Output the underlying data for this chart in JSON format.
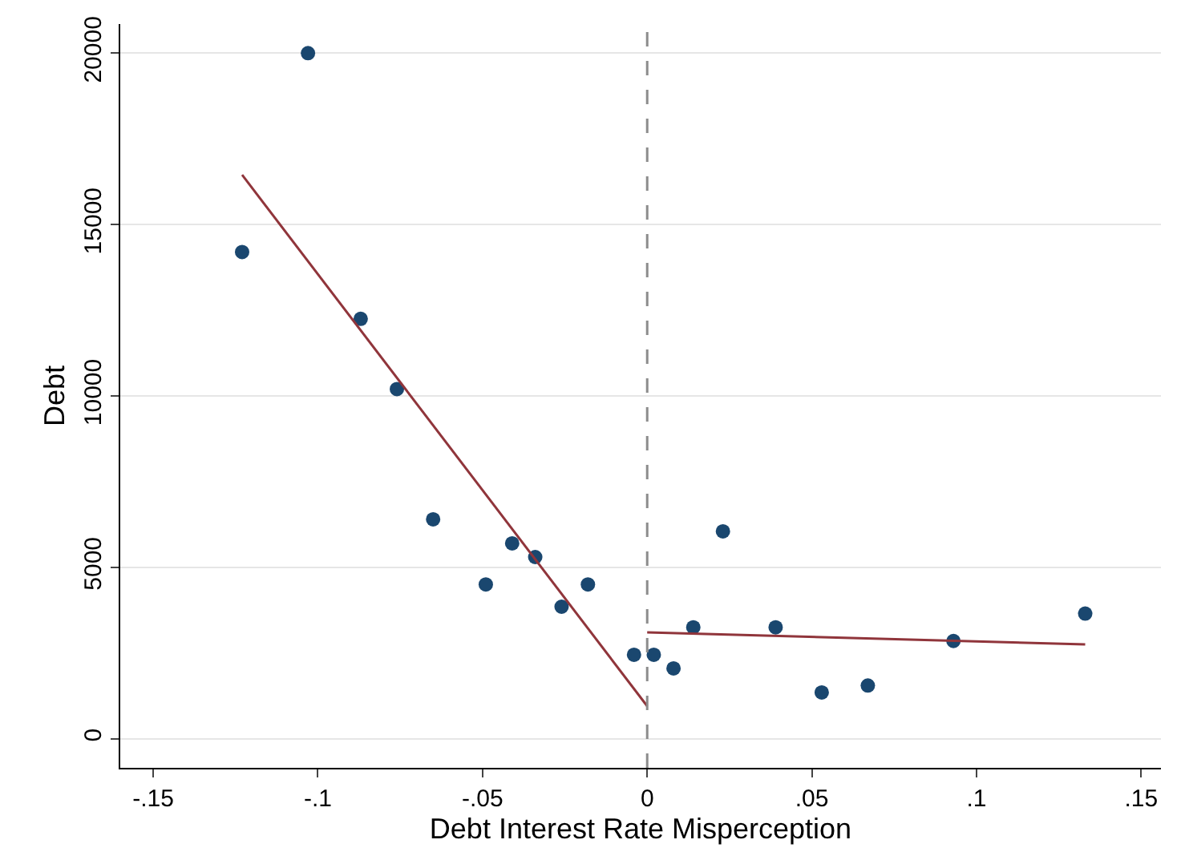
{
  "chart_data": {
    "type": "scatter",
    "xlabel": "Debt Interest Rate Misperception",
    "ylabel": "Debt",
    "xlim": [
      -0.16,
      0.156
    ],
    "xticks": [
      {
        "value": -0.15,
        "label": "-.15"
      },
      {
        "value": -0.1,
        "label": "-.1"
      },
      {
        "value": -0.05,
        "label": "-.05"
      },
      0,
      {
        "value": 0.05,
        "label": ".05"
      },
      {
        "value": 0.1,
        "label": ".1"
      },
      {
        "value": 0.15,
        "label": ".15"
      }
    ],
    "ylim": [
      -850,
      20850
    ],
    "yticks": [
      0,
      5000,
      10000,
      15000,
      20000
    ],
    "grid": "y",
    "ref_lines": [
      {
        "axis": "x",
        "value": 0,
        "color": "#8c8c8c",
        "line_style": "dashed"
      }
    ],
    "series": [
      {
        "marker": "circle",
        "color": "#1a476f",
        "x": [
          -0.123,
          -0.103,
          -0.087,
          -0.076,
          -0.065,
          -0.049,
          -0.041,
          -0.034,
          -0.026,
          -0.018,
          -0.004,
          0.002,
          0.008,
          0.014,
          0.023,
          0.039,
          0.053,
          0.067,
          0.093,
          0.133
        ],
        "values": [
          14200,
          20000,
          12250,
          10200,
          6400,
          4500,
          5700,
          5300,
          3850,
          4500,
          2450,
          2450,
          2050,
          3250,
          6050,
          3250,
          1350,
          1550,
          2850,
          3650
        ]
      },
      {
        "type": "line",
        "color": "#90353b",
        "x": [
          -0.123,
          0
        ],
        "values": [
          16450,
          950
        ]
      },
      {
        "type": "line",
        "color": "#90353b",
        "x": [
          0,
          0.133
        ],
        "values": [
          3100,
          2750
        ]
      }
    ]
  }
}
